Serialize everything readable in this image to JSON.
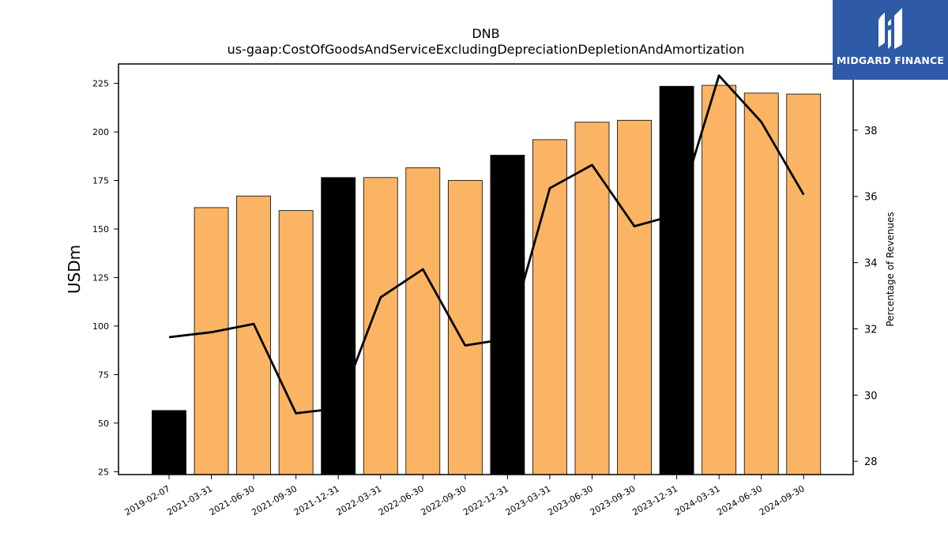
{
  "chart_data": {
    "type": "bar",
    "title": "DNB",
    "subtitle": "us-gaap:CostOfGoodsAndServiceExcludingDepreciationDepletionAndAmortization",
    "ylabel": "USDm",
    "y2label": "Percentage of Revenues",
    "ylim": [
      23.5,
      235
    ],
    "y2lim": [
      27.6,
      40.0
    ],
    "yticks": [
      "25",
      "50",
      "75",
      "100",
      "125",
      "150",
      "175",
      "200",
      "225"
    ],
    "y2ticks": [
      "28",
      "30",
      "32",
      "34",
      "36",
      "38"
    ],
    "categories": [
      "2019-02-07",
      "2021-03-31",
      "2021-06-30",
      "2021-09-30",
      "2021-12-31",
      "2022-03-31",
      "2022-06-30",
      "2022-09-30",
      "2022-12-31",
      "2023-03-31",
      "2023-06-30",
      "2023-09-30",
      "2023-12-31",
      "2024-03-31",
      "2024-06-30",
      "2024-09-30"
    ],
    "series": [
      {
        "type": "bar",
        "values": [
          56.5,
          161,
          167,
          159.5,
          176.5,
          176.5,
          181.5,
          175,
          188,
          196,
          205,
          206,
          223.5,
          224,
          220,
          219.5
        ],
        "highlight": [
          true,
          false,
          false,
          false,
          true,
          false,
          false,
          false,
          true,
          false,
          false,
          false,
          true,
          false,
          false,
          false
        ],
        "colors": {
          "normal": "#fbb464",
          "highlight": "#000000"
        }
      },
      {
        "type": "line",
        "axis": "y2",
        "values": [
          31.75,
          31.9,
          32.15,
          29.45,
          29.6,
          32.95,
          33.8,
          31.5,
          31.7,
          36.25,
          36.95,
          35.1,
          35.45,
          39.65,
          38.25,
          36.05
        ],
        "color": "#000000"
      }
    ]
  },
  "logo": {
    "text": "MIDGARD FINANCE",
    "background": "#2f5aa8",
    "icon": "midgard-logo-icon"
  }
}
